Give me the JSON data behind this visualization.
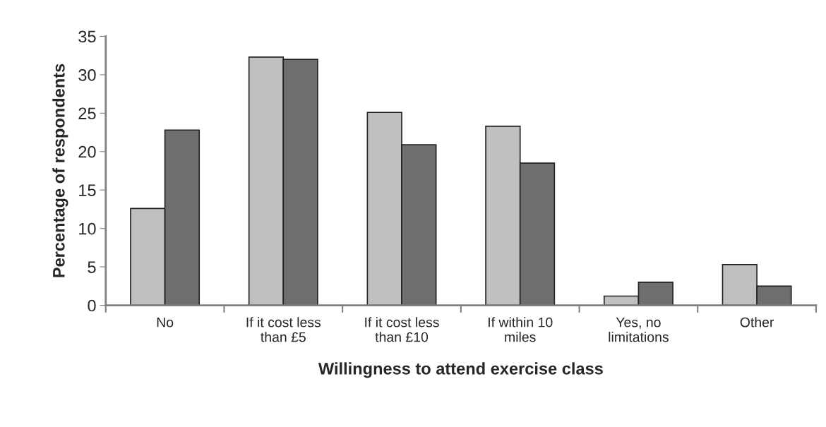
{
  "chart_data": {
    "type": "bar",
    "xlabel": "Willingness to attend exercise class",
    "ylabel": "Percentage of respondents",
    "categories": [
      "No",
      "If it cost less\nthan £5",
      "If it cost less\nthan £10",
      "If within 10\nmiles",
      "Yes, no\nlimitations",
      "Other"
    ],
    "series": [
      {
        "color": "#c0c0c0",
        "values": [
          12.6,
          32.3,
          25.1,
          23.3,
          1.2,
          5.3
        ]
      },
      {
        "color": "#6e6e6e",
        "values": [
          22.8,
          32.0,
          20.9,
          18.5,
          3.0,
          2.5
        ]
      }
    ],
    "ylim": [
      0,
      35
    ],
    "yticks": [
      0,
      5,
      10,
      15,
      20,
      25,
      30,
      35
    ],
    "grid": false,
    "legend": false
  }
}
